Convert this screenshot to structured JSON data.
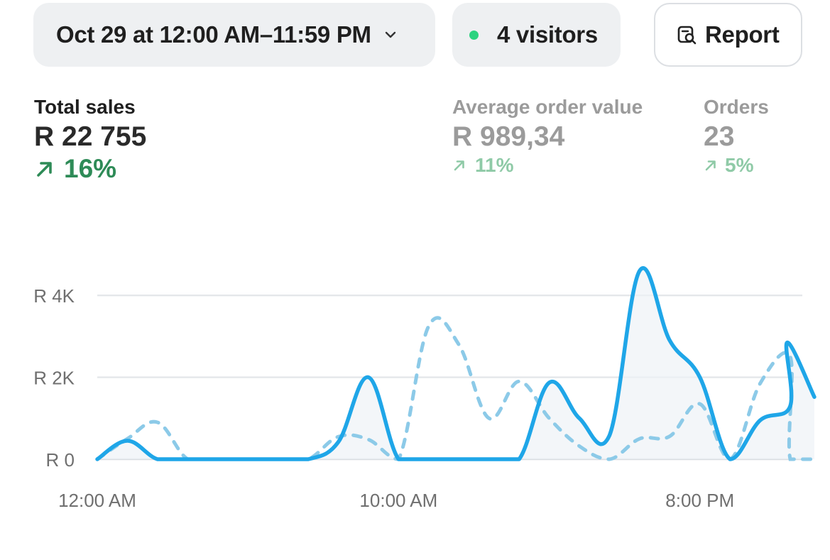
{
  "header": {
    "date_range": "Oct 29 at 12:00 AM–11:59 PM",
    "visitors": "4 visitors",
    "report_label": "Report"
  },
  "colors": {
    "live_dot": "#2bd37f",
    "accent_line": "#1fa6e8",
    "compare_line": "#8ccae8",
    "positive": "#2e8b57"
  },
  "metrics": {
    "total_sales": {
      "label": "Total sales",
      "value": "R 22 755",
      "change": "16%"
    },
    "aov": {
      "label": "Average order value",
      "value": "R 989,34",
      "change": "11%"
    },
    "orders": {
      "label": "Orders",
      "value": "23",
      "change": "5%"
    }
  },
  "chart_data": {
    "type": "line",
    "x": [
      0,
      1,
      2,
      3,
      4,
      5,
      6,
      7,
      8,
      9,
      10,
      11,
      12,
      13,
      14,
      15,
      16,
      17,
      18,
      19,
      20,
      21,
      22,
      23
    ],
    "x_tick_labels": [
      "12:00 AM",
      "10:00 AM",
      "8:00 PM"
    ],
    "x_tick_positions": [
      0,
      10,
      20
    ],
    "y_tick_labels": [
      "R 0",
      "R 2K",
      "R 4K"
    ],
    "y_tick_values": [
      0,
      2000,
      4000
    ],
    "ylim": [
      0,
      5000
    ],
    "grid": true,
    "series": [
      {
        "style": "solid",
        "values": [
          0,
          450,
          0,
          0,
          0,
          0,
          0,
          0,
          420,
          2000,
          0,
          0,
          0,
          0,
          0,
          1870,
          1000,
          580,
          4600,
          2900,
          2000,
          0,
          950,
          1300
        ]
      },
      {
        "style": "dashed",
        "values": [
          0,
          500,
          900,
          0,
          0,
          0,
          0,
          0,
          550,
          480,
          0,
          3250,
          2800,
          1000,
          1900,
          1000,
          320,
          0,
          500,
          560,
          1350,
          0,
          1850,
          2500
        ]
      }
    ],
    "series_tail": [
      {
        "x": 22.9,
        "y": 2850
      },
      {
        "x": 23.8,
        "y": 1520
      }
    ]
  }
}
